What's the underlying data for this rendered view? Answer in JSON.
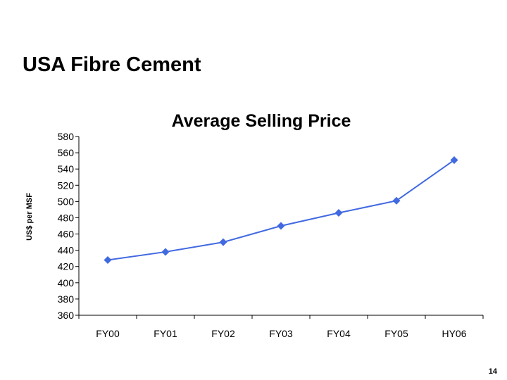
{
  "slide": {
    "title": "USA Fibre Cement",
    "page_number": "14"
  },
  "colors": {
    "series": "#4169E1",
    "axis": "#000000"
  },
  "chart_data": {
    "type": "line",
    "title": "Average Selling Price",
    "xlabel": "",
    "ylabel": "US$ per MSF",
    "categories": [
      "FY00",
      "FY01",
      "FY02",
      "FY03",
      "FY04",
      "FY05",
      "HY06"
    ],
    "series": [
      {
        "values": [
          428,
          438,
          450,
          470,
          486,
          501,
          551
        ],
        "marker": "diamond"
      }
    ],
    "ylim": [
      360,
      580
    ],
    "ytick_step": 20,
    "grid": false,
    "legend": "none"
  }
}
